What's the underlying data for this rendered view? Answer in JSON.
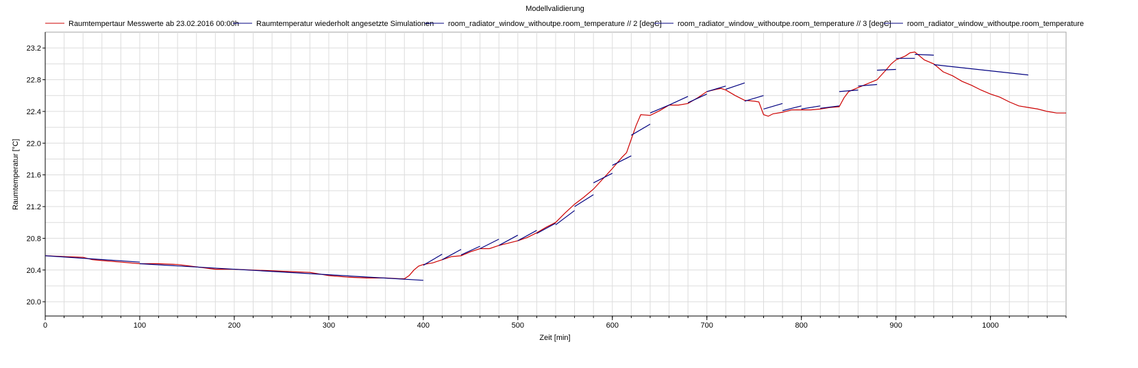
{
  "chart_data": {
    "type": "line",
    "title": "Modellvalidierung",
    "xlabel": "Zeit [min]",
    "ylabel": "Raumtemperatur [°C]",
    "xlim": [
      0,
      1080
    ],
    "ylim": [
      19.82,
      23.4
    ],
    "xticks": [
      0,
      100,
      200,
      300,
      400,
      500,
      600,
      700,
      800,
      900,
      1000
    ],
    "yticks": [
      20.0,
      20.4,
      20.8,
      21.2,
      21.6,
      22.0,
      22.4,
      22.8,
      23.2
    ],
    "grid": true,
    "legend_position": "top",
    "legend": [
      {
        "name": "Raumtempertaur Messwerte ab 23.02.2016 00:00h",
        "color": "#cc0000"
      },
      {
        "name": "Raumtemperatur wiederholt angesetzte Simulationen",
        "color": "#000080"
      },
      {
        "name": "room_radiator_window_withoutpe.room_temperature // 2 [degC]",
        "color": "#000080"
      },
      {
        "name": "room_radiator_window_withoutpe.room_temperature // 3 [degC]",
        "color": "#000080"
      },
      {
        "name": "room_radiator_window_withoutpe.room_temperature",
        "color": "#000080"
      }
    ],
    "series": [
      {
        "name": "Raumtempertaur Messwerte ab 23.02.2016 00:00h",
        "color": "#cc0000",
        "x": [
          0,
          20,
          40,
          50,
          60,
          80,
          100,
          120,
          140,
          160,
          180,
          200,
          220,
          240,
          260,
          280,
          300,
          320,
          340,
          360,
          375,
          380,
          385,
          390,
          395,
          400,
          410,
          420,
          430,
          440,
          450,
          460,
          470,
          480,
          490,
          500,
          510,
          520,
          530,
          540,
          550,
          560,
          570,
          580,
          590,
          600,
          610,
          615,
          620,
          625,
          630,
          640,
          650,
          660,
          670,
          680,
          690,
          700,
          710,
          715,
          720,
          730,
          740,
          750,
          755,
          760,
          765,
          770,
          780,
          790,
          800,
          810,
          820,
          830,
          840,
          845,
          850,
          860,
          870,
          880,
          890,
          895,
          900,
          910,
          915,
          920,
          925,
          930,
          940,
          950,
          960,
          970,
          980,
          990,
          1000,
          1010,
          1020,
          1030,
          1040,
          1050,
          1060,
          1070,
          1080
        ],
        "y": [
          20.58,
          20.57,
          20.56,
          20.53,
          20.52,
          20.5,
          20.48,
          20.48,
          20.47,
          20.44,
          20.41,
          20.41,
          20.4,
          20.39,
          20.38,
          20.37,
          20.33,
          20.31,
          20.3,
          20.3,
          20.29,
          20.29,
          20.33,
          20.4,
          20.45,
          20.47,
          20.49,
          20.53,
          20.57,
          20.58,
          20.63,
          20.67,
          20.67,
          20.71,
          20.74,
          20.77,
          20.81,
          20.87,
          20.94,
          21.0,
          21.12,
          21.23,
          21.32,
          21.42,
          21.55,
          21.68,
          21.82,
          21.88,
          22.05,
          22.22,
          22.36,
          22.35,
          22.41,
          22.48,
          22.48,
          22.5,
          22.57,
          22.65,
          22.68,
          22.69,
          22.67,
          22.6,
          22.54,
          22.53,
          22.52,
          22.36,
          22.34,
          22.37,
          22.39,
          22.42,
          22.42,
          22.42,
          22.43,
          22.45,
          22.46,
          22.57,
          22.65,
          22.7,
          22.75,
          22.8,
          22.93,
          23.0,
          23.05,
          23.1,
          23.14,
          23.15,
          23.1,
          23.05,
          23.0,
          22.9,
          22.85,
          22.78,
          22.73,
          22.67,
          22.62,
          22.58,
          22.52,
          22.47,
          22.45,
          22.43,
          22.4,
          22.38,
          22.38
        ]
      },
      {
        "name": "Raumtemperatur wiederholt angesetzte Simulationen",
        "color": "#000080",
        "segments": [
          {
            "x": [
              0,
              100
            ],
            "y": [
              20.58,
              20.5
            ]
          },
          {
            "x": [
              100,
              400
            ],
            "y": [
              20.48,
              20.27
            ]
          },
          {
            "x": [
              400,
              420
            ],
            "y": [
              20.46,
              20.6
            ]
          },
          {
            "x": [
              420,
              440
            ],
            "y": [
              20.53,
              20.66
            ]
          },
          {
            "x": [
              440,
              460
            ],
            "y": [
              20.59,
              20.7
            ]
          },
          {
            "x": [
              460,
              480
            ],
            "y": [
              20.67,
              20.79
            ]
          },
          {
            "x": [
              480,
              500
            ],
            "y": [
              20.71,
              20.84
            ]
          },
          {
            "x": [
              500,
              520
            ],
            "y": [
              20.77,
              20.9
            ]
          },
          {
            "x": [
              520,
              540
            ],
            "y": [
              20.86,
              20.99
            ]
          },
          {
            "x": [
              540,
              560
            ],
            "y": [
              20.97,
              21.15
            ]
          },
          {
            "x": [
              560,
              580
            ],
            "y": [
              21.2,
              21.35
            ]
          },
          {
            "x": [
              580,
              600
            ],
            "y": [
              21.5,
              21.62
            ]
          },
          {
            "x": [
              600,
              620
            ],
            "y": [
              21.72,
              21.84
            ]
          },
          {
            "x": [
              620,
              640
            ],
            "y": [
              22.1,
              22.24
            ]
          },
          {
            "x": [
              640,
              660
            ],
            "y": [
              22.38,
              22.48
            ]
          },
          {
            "x": [
              660,
              680
            ],
            "y": [
              22.48,
              22.59
            ]
          },
          {
            "x": [
              680,
              700
            ],
            "y": [
              22.51,
              22.62
            ]
          },
          {
            "x": [
              700,
              720
            ],
            "y": [
              22.65,
              22.72
            ]
          },
          {
            "x": [
              720,
              740
            ],
            "y": [
              22.68,
              22.76
            ]
          },
          {
            "x": [
              740,
              760
            ],
            "y": [
              22.53,
              22.6
            ]
          },
          {
            "x": [
              760,
              780
            ],
            "y": [
              22.43,
              22.5
            ]
          },
          {
            "x": [
              780,
              800
            ],
            "y": [
              22.41,
              22.47
            ]
          },
          {
            "x": [
              800,
              820
            ],
            "y": [
              22.43,
              22.47
            ]
          },
          {
            "x": [
              820,
              840
            ],
            "y": [
              22.44,
              22.47
            ]
          },
          {
            "x": [
              840,
              860
            ],
            "y": [
              22.65,
              22.67
            ]
          },
          {
            "x": [
              860,
              880
            ],
            "y": [
              22.72,
              22.74
            ]
          },
          {
            "x": [
              880,
              900
            ],
            "y": [
              22.92,
              22.93
            ]
          },
          {
            "x": [
              900,
              920
            ],
            "y": [
              23.07,
              23.07
            ]
          },
          {
            "x": [
              920,
              940
            ],
            "y": [
              23.12,
              23.11
            ]
          },
          {
            "x": [
              940,
              1040
            ],
            "y": [
              22.99,
              22.86
            ]
          }
        ]
      }
    ]
  }
}
